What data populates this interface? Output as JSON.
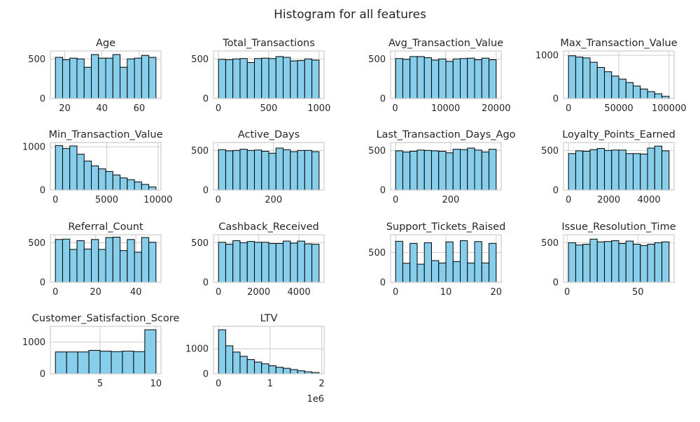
{
  "figure": {
    "title": "Histogram for all features"
  },
  "style": {
    "bar_fill": "#87ceeb",
    "bar_edge": "#000000",
    "grid": "#cccccc",
    "spine": "#cccccc",
    "text": "#262626"
  },
  "chart_data": [
    {
      "type": "bar",
      "title": "Age",
      "x_range": [
        15,
        69
      ],
      "ylim": [
        0,
        600
      ],
      "xticks": [
        {
          "v": 20,
          "label": "20"
        },
        {
          "v": 40,
          "label": "40"
        },
        {
          "v": 60,
          "label": "60"
        }
      ],
      "yticks": [
        {
          "v": 0,
          "label": "0"
        },
        {
          "v": 500,
          "label": "500"
        }
      ],
      "values": [
        520,
        490,
        510,
        500,
        395,
        555,
        510,
        510,
        555,
        395,
        500,
        510,
        545,
        520
      ]
    },
    {
      "type": "bar",
      "title": "Total_Transactions",
      "x_range": [
        1,
        1000
      ],
      "ylim": [
        0,
        600
      ],
      "xticks": [
        {
          "v": 0,
          "label": "0"
        },
        {
          "v": 500,
          "label": "500"
        },
        {
          "v": 1000,
          "label": "1000"
        }
      ],
      "yticks": [
        {
          "v": 0,
          "label": "0"
        },
        {
          "v": 500,
          "label": "500"
        }
      ],
      "values": [
        495,
        490,
        500,
        505,
        455,
        505,
        510,
        505,
        530,
        520,
        475,
        480,
        500,
        485
      ]
    },
    {
      "type": "bar",
      "title": "Avg_Transaction_Value",
      "x_range": [
        100,
        20000
      ],
      "ylim": [
        0,
        600
      ],
      "xticks": [
        {
          "v": 0,
          "label": "0"
        },
        {
          "v": 10000,
          "label": "10000"
        },
        {
          "v": 20000,
          "label": "20000"
        }
      ],
      "yticks": [
        {
          "v": 0,
          "label": "0"
        },
        {
          "v": 500,
          "label": "500"
        }
      ],
      "values": [
        505,
        495,
        530,
        530,
        515,
        485,
        500,
        470,
        500,
        505,
        510,
        490,
        510,
        490
      ]
    },
    {
      "type": "bar",
      "title": "Max_Transaction_Value",
      "x_range": [
        0,
        100000
      ],
      "ylim": [
        0,
        1100
      ],
      "xticks": [
        {
          "v": 0,
          "label": "0"
        },
        {
          "v": 50000,
          "label": "50000"
        },
        {
          "v": 100000,
          "label": "100000"
        }
      ],
      "yticks": [
        {
          "v": 0,
          "label": "0"
        },
        {
          "v": 1000,
          "label": "1000"
        }
      ],
      "values": [
        990,
        960,
        940,
        840,
        720,
        620,
        520,
        450,
        370,
        290,
        220,
        160,
        110,
        50
      ]
    },
    {
      "type": "bar",
      "title": "Min_Transaction_Value",
      "x_range": [
        0,
        9800
      ],
      "ylim": [
        0,
        1100
      ],
      "xticks": [
        {
          "v": 0,
          "label": "0"
        },
        {
          "v": 5000,
          "label": "5000"
        },
        {
          "v": 10000,
          "label": "10000"
        }
      ],
      "yticks": [
        {
          "v": 0,
          "label": "0"
        },
        {
          "v": 1000,
          "label": "1000"
        }
      ],
      "values": [
        1030,
        960,
        1020,
        830,
        670,
        560,
        490,
        430,
        350,
        280,
        240,
        190,
        130,
        70
      ]
    },
    {
      "type": "bar",
      "title": "Active_Days",
      "x_range": [
        1,
        365
      ],
      "ylim": [
        0,
        600
      ],
      "xticks": [
        {
          "v": 0,
          "label": "0"
        },
        {
          "v": 200,
          "label": "200"
        }
      ],
      "yticks": [
        {
          "v": 0,
          "label": "0"
        },
        {
          "v": 500,
          "label": "500"
        }
      ],
      "values": [
        510,
        495,
        500,
        515,
        500,
        505,
        490,
        465,
        530,
        510,
        485,
        500,
        500,
        485
      ]
    },
    {
      "type": "bar",
      "title": "Last_Transaction_Days_Ago",
      "x_range": [
        0,
        365
      ],
      "ylim": [
        0,
        600
      ],
      "xticks": [
        {
          "v": 0,
          "label": "0"
        },
        {
          "v": 200,
          "label": "200"
        }
      ],
      "yticks": [
        {
          "v": 0,
          "label": "0"
        },
        {
          "v": 500,
          "label": "500"
        }
      ],
      "values": [
        495,
        480,
        490,
        505,
        500,
        495,
        490,
        470,
        515,
        510,
        530,
        505,
        480,
        515
      ]
    },
    {
      "type": "bar",
      "title": "Loyalty_Points_Earned",
      "x_range": [
        0,
        5000
      ],
      "ylim": [
        0,
        600
      ],
      "xticks": [
        {
          "v": 0,
          "label": "0"
        },
        {
          "v": 2000,
          "label": "2000"
        },
        {
          "v": 4000,
          "label": "4000"
        }
      ],
      "yticks": [
        {
          "v": 0,
          "label": "0"
        },
        {
          "v": 500,
          "label": "500"
        }
      ],
      "values": [
        460,
        495,
        490,
        510,
        525,
        500,
        505,
        505,
        460,
        460,
        455,
        530,
        555,
        495
      ]
    },
    {
      "type": "bar",
      "title": "Referral_Count",
      "x_range": [
        0,
        50
      ],
      "ylim": [
        0,
        600
      ],
      "xticks": [
        {
          "v": 0,
          "label": "0"
        },
        {
          "v": 20,
          "label": "20"
        },
        {
          "v": 40,
          "label": "40"
        }
      ],
      "yticks": [
        {
          "v": 0,
          "label": "0"
        },
        {
          "v": 500,
          "label": "500"
        }
      ],
      "values": [
        540,
        545,
        415,
        525,
        420,
        540,
        415,
        565,
        570,
        400,
        540,
        380,
        565,
        505
      ]
    },
    {
      "type": "bar",
      "title": "Cashback_Received",
      "x_range": [
        0,
        5000
      ],
      "ylim": [
        0,
        600
      ],
      "xticks": [
        {
          "v": 0,
          "label": "0"
        },
        {
          "v": 2000,
          "label": "2000"
        },
        {
          "v": 4000,
          "label": "4000"
        }
      ],
      "yticks": [
        {
          "v": 0,
          "label": "0"
        },
        {
          "v": 500,
          "label": "500"
        }
      ],
      "values": [
        505,
        480,
        525,
        500,
        515,
        505,
        505,
        490,
        490,
        520,
        495,
        520,
        485,
        480
      ]
    },
    {
      "type": "bar",
      "title": "Support_Tickets_Raised",
      "x_range": [
        0,
        20
      ],
      "ylim": [
        0,
        800
      ],
      "xticks": [
        {
          "v": 0,
          "label": "0"
        },
        {
          "v": 10,
          "label": "10"
        },
        {
          "v": 20,
          "label": "20"
        }
      ],
      "yticks": [
        {
          "v": 0,
          "label": "0"
        },
        {
          "v": 500,
          "label": "500"
        }
      ],
      "values": [
        690,
        320,
        655,
        305,
        665,
        365,
        325,
        680,
        350,
        700,
        325,
        685,
        325,
        655
      ]
    },
    {
      "type": "bar",
      "title": "Issue_Resolution_Time",
      "x_range": [
        1,
        72
      ],
      "ylim": [
        0,
        600
      ],
      "xticks": [
        {
          "v": 0,
          "label": "0"
        },
        {
          "v": 50,
          "label": "50"
        }
      ],
      "yticks": [
        {
          "v": 0,
          "label": "0"
        },
        {
          "v": 500,
          "label": "500"
        }
      ],
      "values": [
        500,
        470,
        480,
        545,
        510,
        515,
        525,
        490,
        520,
        480,
        465,
        480,
        500,
        510
      ]
    },
    {
      "type": "bar",
      "title": "Customer_Satisfaction_Score",
      "x_range": [
        1,
        10
      ],
      "ylim": [
        0,
        1500
      ],
      "xticks": [
        {
          "v": 5,
          "label": "5"
        },
        {
          "v": 10,
          "label": "10"
        }
      ],
      "yticks": [
        {
          "v": 0,
          "label": "0"
        },
        {
          "v": 1000,
          "label": "1000"
        }
      ],
      "values": [
        690,
        690,
        690,
        740,
        715,
        700,
        715,
        700,
        1390
      ]
    },
    {
      "type": "bar",
      "title": "LTV",
      "x_range": [
        0,
        1950000
      ],
      "ylim": [
        0,
        1900
      ],
      "xticks": [
        {
          "v": 0,
          "label": "0"
        },
        {
          "v": 1000000,
          "label": "1"
        },
        {
          "v": 2000000,
          "label": "2"
        }
      ],
      "yticks": [
        {
          "v": 0,
          "label": "0"
        },
        {
          "v": 1000,
          "label": "1000"
        }
      ],
      "offset_text": "1e6",
      "values": [
        1760,
        1120,
        870,
        700,
        570,
        470,
        400,
        320,
        260,
        220,
        170,
        120,
        80,
        50
      ]
    }
  ]
}
